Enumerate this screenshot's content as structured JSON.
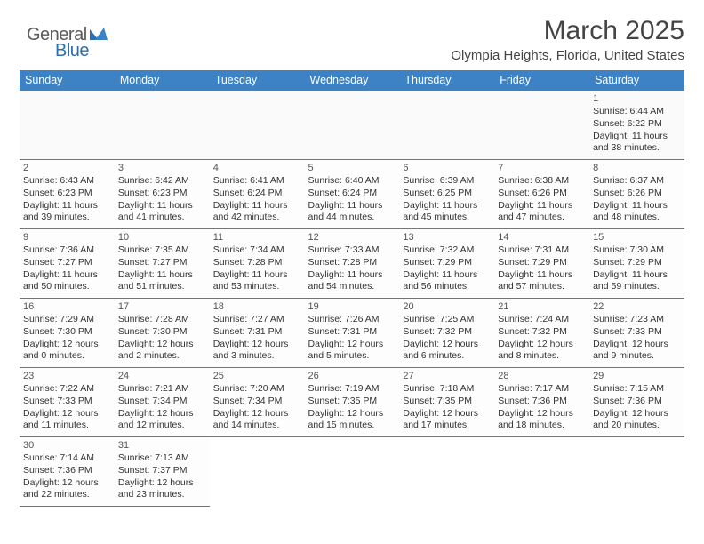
{
  "logo": {
    "part1": "General",
    "part2": "Blue"
  },
  "header": {
    "title": "March 2025",
    "subtitle": "Olympia Heights, Florida, United States"
  },
  "columns": [
    "Sunday",
    "Monday",
    "Tuesday",
    "Wednesday",
    "Thursday",
    "Friday",
    "Saturday"
  ],
  "colors": {
    "header_bg": "#3c82c4",
    "header_fg": "#ffffff",
    "border": "#3c82c4",
    "logo_gray": "#5a5a5a",
    "logo_blue": "#2b6fb0"
  },
  "weeks": [
    [
      null,
      null,
      null,
      null,
      null,
      null,
      {
        "n": "1",
        "sunrise": "Sunrise: 6:44 AM",
        "sunset": "Sunset: 6:22 PM",
        "day1": "Daylight: 11 hours",
        "day2": "and 38 minutes."
      }
    ],
    [
      {
        "n": "2",
        "sunrise": "Sunrise: 6:43 AM",
        "sunset": "Sunset: 6:23 PM",
        "day1": "Daylight: 11 hours",
        "day2": "and 39 minutes."
      },
      {
        "n": "3",
        "sunrise": "Sunrise: 6:42 AM",
        "sunset": "Sunset: 6:23 PM",
        "day1": "Daylight: 11 hours",
        "day2": "and 41 minutes."
      },
      {
        "n": "4",
        "sunrise": "Sunrise: 6:41 AM",
        "sunset": "Sunset: 6:24 PM",
        "day1": "Daylight: 11 hours",
        "day2": "and 42 minutes."
      },
      {
        "n": "5",
        "sunrise": "Sunrise: 6:40 AM",
        "sunset": "Sunset: 6:24 PM",
        "day1": "Daylight: 11 hours",
        "day2": "and 44 minutes."
      },
      {
        "n": "6",
        "sunrise": "Sunrise: 6:39 AM",
        "sunset": "Sunset: 6:25 PM",
        "day1": "Daylight: 11 hours",
        "day2": "and 45 minutes."
      },
      {
        "n": "7",
        "sunrise": "Sunrise: 6:38 AM",
        "sunset": "Sunset: 6:26 PM",
        "day1": "Daylight: 11 hours",
        "day2": "and 47 minutes."
      },
      {
        "n": "8",
        "sunrise": "Sunrise: 6:37 AM",
        "sunset": "Sunset: 6:26 PM",
        "day1": "Daylight: 11 hours",
        "day2": "and 48 minutes."
      }
    ],
    [
      {
        "n": "9",
        "sunrise": "Sunrise: 7:36 AM",
        "sunset": "Sunset: 7:27 PM",
        "day1": "Daylight: 11 hours",
        "day2": "and 50 minutes."
      },
      {
        "n": "10",
        "sunrise": "Sunrise: 7:35 AM",
        "sunset": "Sunset: 7:27 PM",
        "day1": "Daylight: 11 hours",
        "day2": "and 51 minutes."
      },
      {
        "n": "11",
        "sunrise": "Sunrise: 7:34 AM",
        "sunset": "Sunset: 7:28 PM",
        "day1": "Daylight: 11 hours",
        "day2": "and 53 minutes."
      },
      {
        "n": "12",
        "sunrise": "Sunrise: 7:33 AM",
        "sunset": "Sunset: 7:28 PM",
        "day1": "Daylight: 11 hours",
        "day2": "and 54 minutes."
      },
      {
        "n": "13",
        "sunrise": "Sunrise: 7:32 AM",
        "sunset": "Sunset: 7:29 PM",
        "day1": "Daylight: 11 hours",
        "day2": "and 56 minutes."
      },
      {
        "n": "14",
        "sunrise": "Sunrise: 7:31 AM",
        "sunset": "Sunset: 7:29 PM",
        "day1": "Daylight: 11 hours",
        "day2": "and 57 minutes."
      },
      {
        "n": "15",
        "sunrise": "Sunrise: 7:30 AM",
        "sunset": "Sunset: 7:29 PM",
        "day1": "Daylight: 11 hours",
        "day2": "and 59 minutes."
      }
    ],
    [
      {
        "n": "16",
        "sunrise": "Sunrise: 7:29 AM",
        "sunset": "Sunset: 7:30 PM",
        "day1": "Daylight: 12 hours",
        "day2": "and 0 minutes."
      },
      {
        "n": "17",
        "sunrise": "Sunrise: 7:28 AM",
        "sunset": "Sunset: 7:30 PM",
        "day1": "Daylight: 12 hours",
        "day2": "and 2 minutes."
      },
      {
        "n": "18",
        "sunrise": "Sunrise: 7:27 AM",
        "sunset": "Sunset: 7:31 PM",
        "day1": "Daylight: 12 hours",
        "day2": "and 3 minutes."
      },
      {
        "n": "19",
        "sunrise": "Sunrise: 7:26 AM",
        "sunset": "Sunset: 7:31 PM",
        "day1": "Daylight: 12 hours",
        "day2": "and 5 minutes."
      },
      {
        "n": "20",
        "sunrise": "Sunrise: 7:25 AM",
        "sunset": "Sunset: 7:32 PM",
        "day1": "Daylight: 12 hours",
        "day2": "and 6 minutes."
      },
      {
        "n": "21",
        "sunrise": "Sunrise: 7:24 AM",
        "sunset": "Sunset: 7:32 PM",
        "day1": "Daylight: 12 hours",
        "day2": "and 8 minutes."
      },
      {
        "n": "22",
        "sunrise": "Sunrise: 7:23 AM",
        "sunset": "Sunset: 7:33 PM",
        "day1": "Daylight: 12 hours",
        "day2": "and 9 minutes."
      }
    ],
    [
      {
        "n": "23",
        "sunrise": "Sunrise: 7:22 AM",
        "sunset": "Sunset: 7:33 PM",
        "day1": "Daylight: 12 hours",
        "day2": "and 11 minutes."
      },
      {
        "n": "24",
        "sunrise": "Sunrise: 7:21 AM",
        "sunset": "Sunset: 7:34 PM",
        "day1": "Daylight: 12 hours",
        "day2": "and 12 minutes."
      },
      {
        "n": "25",
        "sunrise": "Sunrise: 7:20 AM",
        "sunset": "Sunset: 7:34 PM",
        "day1": "Daylight: 12 hours",
        "day2": "and 14 minutes."
      },
      {
        "n": "26",
        "sunrise": "Sunrise: 7:19 AM",
        "sunset": "Sunset: 7:35 PM",
        "day1": "Daylight: 12 hours",
        "day2": "and 15 minutes."
      },
      {
        "n": "27",
        "sunrise": "Sunrise: 7:18 AM",
        "sunset": "Sunset: 7:35 PM",
        "day1": "Daylight: 12 hours",
        "day2": "and 17 minutes."
      },
      {
        "n": "28",
        "sunrise": "Sunrise: 7:17 AM",
        "sunset": "Sunset: 7:36 PM",
        "day1": "Daylight: 12 hours",
        "day2": "and 18 minutes."
      },
      {
        "n": "29",
        "sunrise": "Sunrise: 7:15 AM",
        "sunset": "Sunset: 7:36 PM",
        "day1": "Daylight: 12 hours",
        "day2": "and 20 minutes."
      }
    ],
    [
      {
        "n": "30",
        "sunrise": "Sunrise: 7:14 AM",
        "sunset": "Sunset: 7:36 PM",
        "day1": "Daylight: 12 hours",
        "day2": "and 22 minutes."
      },
      {
        "n": "31",
        "sunrise": "Sunrise: 7:13 AM",
        "sunset": "Sunset: 7:37 PM",
        "day1": "Daylight: 12 hours",
        "day2": "and 23 minutes."
      },
      null,
      null,
      null,
      null,
      null
    ]
  ]
}
